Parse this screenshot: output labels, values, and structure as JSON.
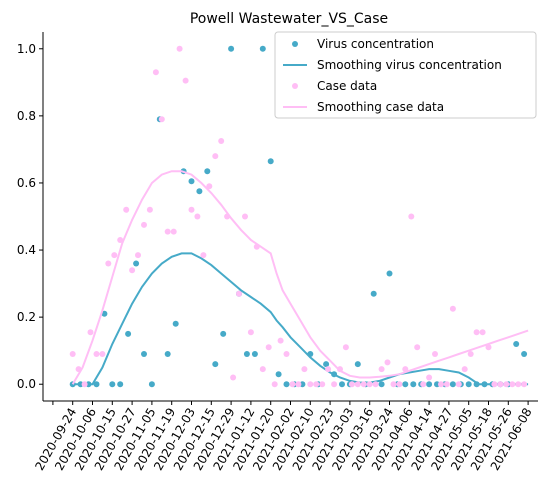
{
  "chart_data": {
    "type": "scatter",
    "title": "Powell Wastewater_VS_Case",
    "xlabel": "",
    "ylabel": "",
    "x_tick_labels": [
      "2020-09-24",
      "2020-10-06",
      "2020-10-15",
      "2020-10-27",
      "2020-11-05",
      "2020-11-19",
      "2020-12-03",
      "2020-12-15",
      "2020-12-29",
      "2021-01-12",
      "2021-01-20",
      "2021-02-02",
      "2021-02-10",
      "2021-02-23",
      "2021-03-03",
      "2021-03-16",
      "2021-03-24",
      "2021-04-06",
      "2021-04-14",
      "2021-04-27",
      "2021-05-05",
      "2021-05-18",
      "2021-05-26",
      "2021-06-08"
    ],
    "y_ticks": [
      "0.0",
      "0.2",
      "0.4",
      "0.6",
      "0.8",
      "1.0"
    ],
    "ylim": [
      -0.05,
      1.05
    ],
    "xlim": [
      -1.5,
      23.5
    ],
    "grid": false,
    "legend_position": "top-right",
    "colors": {
      "virus": "#46aac8",
      "case": "#ffbef5"
    },
    "series": [
      {
        "name": "Virus concentration",
        "kind": "points",
        "x": [
          0.0,
          0.4,
          0.8,
          1.2,
          1.6,
          2.0,
          2.4,
          2.8,
          3.2,
          3.6,
          4.0,
          4.4,
          4.8,
          5.2,
          5.6,
          6.0,
          6.4,
          6.8,
          7.2,
          7.6,
          8.0,
          8.4,
          8.8,
          9.2,
          9.6,
          10.0,
          10.4,
          10.8,
          11.2,
          11.6,
          12.0,
          12.4,
          12.8,
          13.2,
          13.6,
          14.0,
          14.4,
          14.8,
          15.2,
          15.6,
          16.0,
          16.4,
          16.8,
          17.2,
          17.6,
          18.0,
          18.4,
          18.8,
          19.2,
          19.6,
          20.0,
          20.4,
          20.8,
          21.2,
          21.6,
          22.0,
          22.4,
          22.8
        ],
        "y": [
          0.0,
          0.0,
          0.0,
          0.0,
          0.21,
          0.0,
          0.0,
          0.15,
          0.36,
          0.09,
          0.0,
          0.79,
          0.09,
          0.18,
          0.635,
          0.605,
          0.575,
          0.635,
          0.06,
          0.15,
          1.0,
          0.27,
          0.09,
          0.09,
          1.0,
          0.665,
          0.03,
          0.0,
          0.0,
          0.0,
          0.09,
          0.0,
          0.06,
          0.03,
          0.0,
          0.0,
          0.06,
          0.0,
          0.27,
          0.0,
          0.33,
          0.0,
          0.0,
          0.0,
          0.0,
          0.0,
          0.0,
          0.0,
          0.0,
          0.0,
          0.0,
          0.0,
          0.0,
          0.0,
          0.0,
          0.0,
          0.12,
          0.09
        ]
      },
      {
        "name": "Smoothing virus concentration",
        "kind": "line",
        "x": [
          0.0,
          0.5,
          1.0,
          1.5,
          2.0,
          2.5,
          3.0,
          3.5,
          4.0,
          4.5,
          5.0,
          5.5,
          6.0,
          6.5,
          7.0,
          7.5,
          8.0,
          8.5,
          9.0,
          9.5,
          10.0,
          10.3,
          10.6,
          11.0,
          11.5,
          12.0,
          12.5,
          13.0,
          13.5,
          14.0,
          14.5,
          15.0,
          15.5,
          16.0,
          16.5,
          17.0,
          17.5,
          18.0,
          18.5,
          19.0,
          19.5,
          20.0,
          20.5,
          21.0,
          21.5,
          22.0,
          22.5,
          23.0
        ],
        "y": [
          0.0,
          0.0,
          0.0,
          0.05,
          0.12,
          0.18,
          0.24,
          0.29,
          0.33,
          0.36,
          0.38,
          0.39,
          0.39,
          0.375,
          0.355,
          0.33,
          0.305,
          0.28,
          0.26,
          0.24,
          0.215,
          0.19,
          0.17,
          0.14,
          0.11,
          0.08,
          0.055,
          0.035,
          0.02,
          0.01,
          0.005,
          0.005,
          0.01,
          0.02,
          0.03,
          0.035,
          0.04,
          0.045,
          0.045,
          0.04,
          0.035,
          0.02,
          0.0,
          0.0,
          0.0,
          0.0,
          0.0,
          0.0
        ]
      },
      {
        "name": "Case data",
        "kind": "points",
        "x": [
          0.0,
          0.3,
          0.6,
          0.9,
          1.2,
          1.5,
          1.8,
          2.1,
          2.4,
          2.7,
          3.0,
          3.3,
          3.6,
          3.9,
          4.2,
          4.5,
          4.8,
          5.1,
          5.4,
          5.7,
          6.0,
          6.3,
          6.6,
          6.9,
          7.2,
          7.5,
          7.8,
          8.1,
          8.4,
          8.7,
          9.0,
          9.3,
          9.6,
          9.9,
          10.2,
          10.5,
          10.8,
          11.1,
          11.4,
          11.7,
          12.0,
          12.3,
          12.6,
          12.9,
          13.2,
          13.5,
          13.8,
          14.1,
          14.4,
          14.7,
          15.0,
          15.3,
          15.6,
          15.9,
          16.2,
          16.5,
          16.8,
          17.1,
          17.4,
          17.7,
          18.0,
          18.3,
          18.6,
          18.9,
          19.2,
          19.5,
          19.8,
          20.1,
          20.4,
          20.7,
          21.0,
          21.3,
          21.6,
          21.9,
          22.2,
          22.5,
          22.8
        ],
        "y": [
          0.09,
          0.045,
          0.0,
          0.155,
          0.09,
          0.09,
          0.36,
          0.385,
          0.43,
          0.52,
          0.34,
          0.385,
          0.475,
          0.52,
          0.93,
          0.79,
          0.455,
          0.455,
          1.0,
          0.905,
          0.52,
          0.5,
          0.385,
          0.59,
          0.68,
          0.725,
          0.5,
          0.02,
          0.27,
          0.5,
          0.155,
          0.41,
          0.045,
          0.11,
          0.0,
          0.13,
          0.09,
          0.0,
          0.0,
          0.045,
          0.0,
          0.0,
          0.0,
          0.045,
          0.0,
          0.045,
          0.11,
          0.0,
          0.0,
          0.0,
          0.0,
          0.0,
          0.045,
          0.065,
          0.0,
          0.0,
          0.045,
          0.5,
          0.11,
          0.0,
          0.02,
          0.09,
          0.0,
          0.0,
          0.225,
          0.0,
          0.045,
          0.09,
          0.155,
          0.155,
          0.11,
          0.0,
          0.0,
          0.0,
          0.0,
          0.0,
          0.0
        ]
      },
      {
        "name": "Smoothing case data",
        "kind": "line",
        "x": [
          0.0,
          0.5,
          1.0,
          1.5,
          2.0,
          2.5,
          3.0,
          3.5,
          4.0,
          4.5,
          5.0,
          5.5,
          6.0,
          6.5,
          7.0,
          7.5,
          8.0,
          8.5,
          9.0,
          9.5,
          10.0,
          10.3,
          10.6,
          11.0,
          11.5,
          12.0,
          12.5,
          13.0,
          13.5,
          14.0,
          14.5,
          15.0,
          15.5,
          16.0,
          16.5,
          17.0,
          17.5,
          18.0,
          18.5,
          19.0,
          19.5,
          20.0,
          20.5,
          21.0,
          21.5,
          22.0,
          22.5,
          23.0
        ],
        "y": [
          0.0,
          0.05,
          0.13,
          0.22,
          0.32,
          0.42,
          0.49,
          0.55,
          0.6,
          0.625,
          0.635,
          0.635,
          0.625,
          0.6,
          0.57,
          0.535,
          0.495,
          0.46,
          0.43,
          0.41,
          0.39,
          0.33,
          0.28,
          0.24,
          0.19,
          0.14,
          0.1,
          0.07,
          0.04,
          0.025,
          0.02,
          0.02,
          0.022,
          0.025,
          0.03,
          0.04,
          0.05,
          0.06,
          0.07,
          0.08,
          0.09,
          0.1,
          0.11,
          0.12,
          0.13,
          0.14,
          0.15,
          0.16
        ]
      }
    ]
  }
}
